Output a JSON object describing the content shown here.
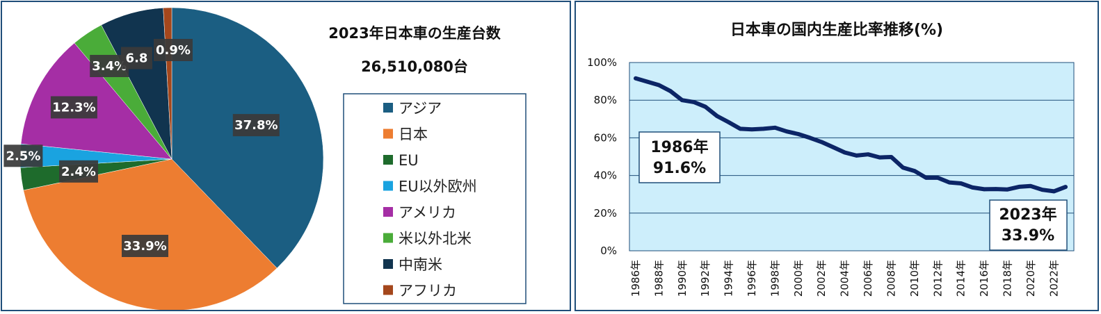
{
  "chart_data": [
    {
      "type": "pie",
      "title": "2023年日本車の生産台数",
      "subtitle": "26,510,080台",
      "categories": [
        "アジア",
        "日本",
        "EU",
        "EU以外欧州",
        "アメリカ",
        "米以外北米",
        "中南米",
        "アフリカ"
      ],
      "values": [
        37.8,
        33.9,
        2.4,
        2.5,
        12.3,
        3.4,
        6.8,
        0.9
      ],
      "data_labels": [
        "37.8%",
        "33.9%",
        "2.4%",
        "2.5%",
        "12.3%",
        "3.4%",
        "6.8",
        "0.9%"
      ],
      "colors": [
        "#1b5e82",
        "#ed7d31",
        "#1e6b2c",
        "#1aa3e0",
        "#a52ea5",
        "#4aac39",
        "#11344f",
        "#a4471c"
      ],
      "legend_position": "right"
    },
    {
      "type": "line",
      "title": "日本車の国内生産比率推移(%)",
      "x": [
        1986,
        1987,
        1988,
        1989,
        1990,
        1991,
        1992,
        1993,
        1994,
        1995,
        1996,
        1997,
        1998,
        1999,
        2000,
        2001,
        2002,
        2003,
        2004,
        2005,
        2006,
        2007,
        2008,
        2009,
        2010,
        2011,
        2012,
        2013,
        2014,
        2015,
        2016,
        2017,
        2018,
        2019,
        2020,
        2021,
        2022,
        2023
      ],
      "x_tick_labels": [
        "1986年",
        "1988年",
        "1990年",
        "1992年",
        "1994年",
        "1996年",
        "1998年",
        "2000年",
        "2002年",
        "2004年",
        "2006年",
        "2008年",
        "2010年",
        "2012年",
        "2014年",
        "2016年",
        "2018年",
        "2020年",
        "2022年"
      ],
      "series": [
        {
          "values": [
            91.6,
            89.8,
            88.0,
            84.8,
            80.0,
            79.0,
            76.5,
            71.6,
            68.3,
            64.8,
            64.5,
            64.8,
            65.4,
            63.4,
            62.0,
            60.0,
            57.8,
            55.0,
            52.2,
            50.6,
            51.2,
            49.6,
            49.8,
            44.2,
            42.4,
            38.8,
            38.8,
            36.3,
            35.8,
            33.6,
            32.7,
            32.8,
            32.6,
            34.0,
            34.4,
            32.4,
            31.6,
            33.9
          ],
          "color": "#0c2566"
        }
      ],
      "y_tick_labels": [
        "0%",
        "20%",
        "40%",
        "60%",
        "80%",
        "100%"
      ],
      "ylim": [
        0,
        100
      ],
      "grid": true,
      "plot_background": "#cdeefb",
      "annotations": [
        {
          "line1": "1986年",
          "line2": "91.6%"
        },
        {
          "line1": "2023年",
          "line2": "33.9%"
        }
      ]
    }
  ]
}
